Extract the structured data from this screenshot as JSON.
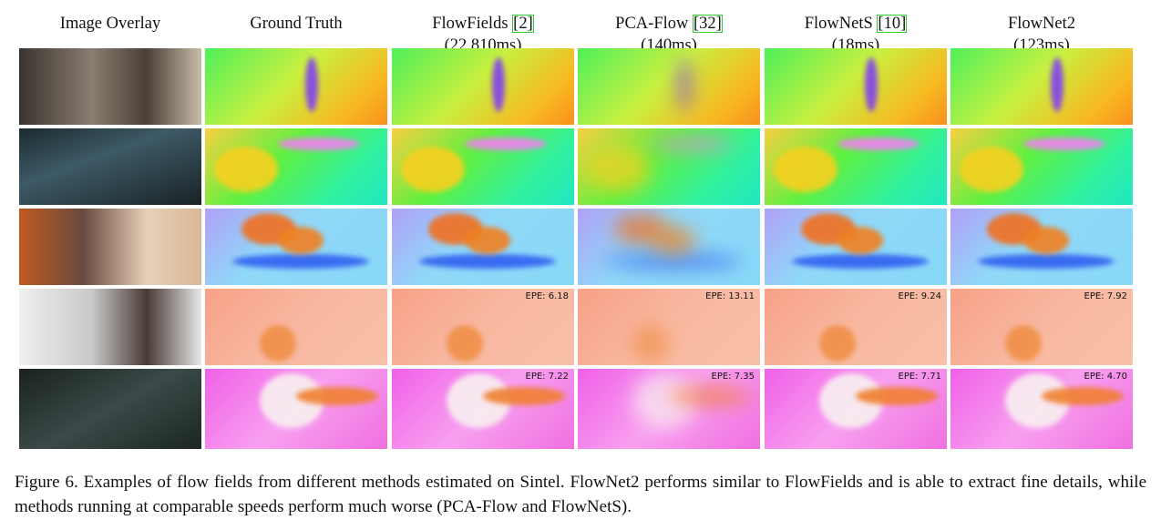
{
  "figure": {
    "columns": [
      {
        "name": "Image Overlay"
      },
      {
        "name": "Ground Truth"
      },
      {
        "name": "FlowFields",
        "ref": "[2]",
        "time": "(22,810ms)"
      },
      {
        "name": "PCA-Flow",
        "ref": "[32]",
        "time": "(140ms)"
      },
      {
        "name": "FlowNetS",
        "ref": "[10]",
        "time": "(18ms)"
      },
      {
        "name": "FlowNet2",
        "time": "(123ms)"
      }
    ],
    "epe_rows": [
      [
        "EPE: 6.18",
        "EPE: 13.11",
        "EPE: 9.24",
        "EPE: 7.92"
      ],
      [
        "EPE: 7.22",
        "EPE: 7.35",
        "EPE: 7.71",
        "EPE: 4.70"
      ]
    ],
    "caption": "Figure 6. Examples of flow fields from different methods estimated on Sintel. FlowNet2 performs similar to FlowFields and is able to extract fine details, while methods running at comparable speeds perform much worse (PCA-Flow and FlowNetS)."
  }
}
